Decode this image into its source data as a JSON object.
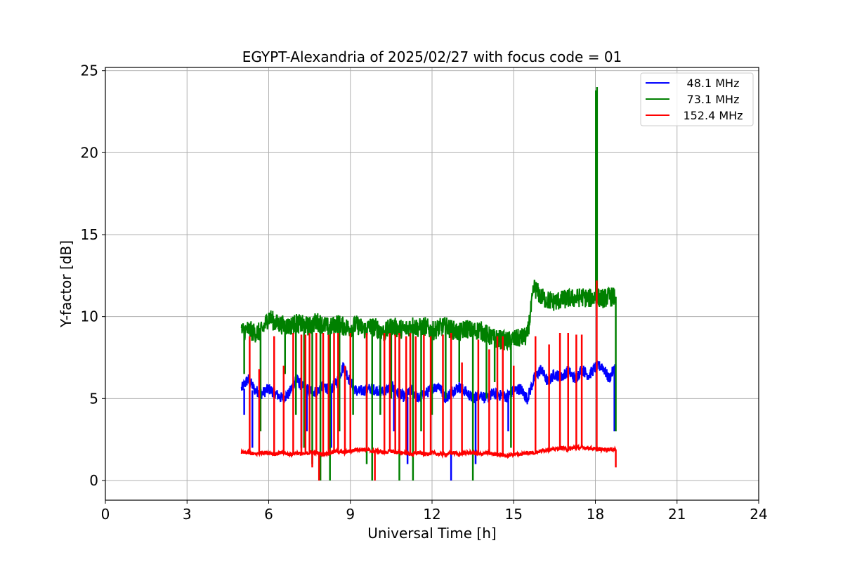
{
  "chart_data": {
    "type": "line",
    "title": "EGYPT-Alexandria of 2025/02/27 with focus code = 01",
    "xlabel": "Universal Time [h]",
    "ylabel": "Y-factor [dB]",
    "xlim": [
      0,
      24
    ],
    "ylim": [
      -1.2,
      25.2
    ],
    "xticks": [
      "0",
      "3",
      "6",
      "9",
      "12",
      "15",
      "18",
      "21",
      "24"
    ],
    "yticks": [
      "0",
      "5",
      "10",
      "15",
      "20",
      "25"
    ],
    "grid": true,
    "legend_position": "top-right",
    "x_step_h": 0.25,
    "x_start_h": 5.0,
    "series": [
      {
        "name": "48.1 MHz",
        "color": "#0000ff",
        "noise": 0.35,
        "values": [
          5.6,
          6.2,
          5.5,
          5.3,
          5.6,
          5.3,
          5.0,
          5.3,
          6.2,
          5.7,
          5.5,
          5.4,
          5.8,
          5.5,
          6.0,
          7.0,
          6.0,
          5.4,
          5.5,
          5.6,
          5.5,
          5.4,
          5.8,
          5.3,
          5.1,
          5.5,
          5.0,
          5.3,
          5.6,
          5.8,
          5.0,
          5.5,
          5.7,
          5.4,
          5.0,
          5.3,
          5.0,
          5.3,
          5.2,
          5.1,
          5.5,
          5.6,
          5.0,
          6.2,
          6.8,
          6.0,
          6.5,
          6.3,
          6.7,
          6.2,
          6.8,
          6.4,
          6.9,
          7.0,
          6.2,
          7.0
        ],
        "spikes": [
          [
            5.1,
            4
          ],
          [
            5.4,
            2
          ],
          [
            7.2,
            2
          ],
          [
            7.4,
            3
          ],
          [
            8.3,
            2
          ],
          [
            10.6,
            3
          ],
          [
            11.1,
            1
          ],
          [
            12.7,
            0
          ],
          [
            13.6,
            1
          ],
          [
            14.8,
            3
          ],
          [
            18.7,
            3
          ]
        ]
      },
      {
        "name": "73.1 MHz",
        "color": "#008000",
        "noise": 0.6,
        "values": [
          9.1,
          9.2,
          9.0,
          9.1,
          10.0,
          9.6,
          9.5,
          9.4,
          9.6,
          9.5,
          9.4,
          9.7,
          9.5,
          9.3,
          9.6,
          9.4,
          9.3,
          9.5,
          9.2,
          9.4,
          9.3,
          9.0,
          9.4,
          9.3,
          9.2,
          9.5,
          9.3,
          9.4,
          9.1,
          9.3,
          9.4,
          9.2,
          9.0,
          9.3,
          9.1,
          9.2,
          8.9,
          8.7,
          8.6,
          8.5,
          8.6,
          8.7,
          8.8,
          11.8,
          11.2,
          11.0,
          10.9,
          11.0,
          11.1,
          11.1,
          11.2,
          11.1,
          11.2,
          11.1,
          11.2,
          11.2
        ],
        "spikes": [
          [
            5.1,
            6.5
          ],
          [
            5.7,
            3
          ],
          [
            6.6,
            6.5
          ],
          [
            7.0,
            4
          ],
          [
            7.3,
            2
          ],
          [
            7.6,
            1
          ],
          [
            7.9,
            0
          ],
          [
            8.25,
            0
          ],
          [
            8.6,
            3
          ],
          [
            9.1,
            4
          ],
          [
            9.6,
            1
          ],
          [
            9.8,
            0
          ],
          [
            10.1,
            4
          ],
          [
            10.5,
            5
          ],
          [
            10.8,
            0
          ],
          [
            11.3,
            0
          ],
          [
            11.6,
            3
          ],
          [
            12.0,
            4
          ],
          [
            12.5,
            5
          ],
          [
            13.0,
            6
          ],
          [
            13.5,
            0
          ],
          [
            14.0,
            5
          ],
          [
            14.3,
            6
          ],
          [
            14.9,
            2
          ],
          [
            18.02,
            23.8
          ],
          [
            18.06,
            24.0
          ],
          [
            18.75,
            3
          ]
        ]
      },
      {
        "name": "152.4 MHz",
        "color": "#ff0000",
        "noise": 0.12,
        "values": [
          1.7,
          1.7,
          1.6,
          1.7,
          1.7,
          1.6,
          1.7,
          1.6,
          1.7,
          1.6,
          1.7,
          1.7,
          1.6,
          1.7,
          1.8,
          1.7,
          1.8,
          1.9,
          1.9,
          1.8,
          1.8,
          1.7,
          1.8,
          1.7,
          1.7,
          1.6,
          1.7,
          1.6,
          1.7,
          1.6,
          1.6,
          1.7,
          1.6,
          1.7,
          1.7,
          1.6,
          1.7,
          1.6,
          1.6,
          1.5,
          1.6,
          1.6,
          1.7,
          1.7,
          1.8,
          1.9,
          1.9,
          2.0,
          1.9,
          2.0,
          2.0,
          2.0,
          1.9,
          1.9,
          1.9,
          1.9
        ],
        "spikes": [
          [
            5.3,
            8.8
          ],
          [
            5.65,
            6.8
          ],
          [
            6.2,
            8.8
          ],
          [
            6.55,
            7
          ],
          [
            6.9,
            9
          ],
          [
            7.2,
            8.9
          ],
          [
            7.35,
            8.9
          ],
          [
            7.5,
            9
          ],
          [
            7.6,
            0.8
          ],
          [
            7.75,
            9
          ],
          [
            7.85,
            0
          ],
          [
            8.0,
            9
          ],
          [
            8.2,
            8.9
          ],
          [
            8.4,
            9
          ],
          [
            8.55,
            9
          ],
          [
            8.8,
            7
          ],
          [
            9.0,
            9
          ],
          [
            9.6,
            9
          ],
          [
            9.9,
            0
          ],
          [
            10.25,
            9
          ],
          [
            10.45,
            9
          ],
          [
            10.65,
            8.9
          ],
          [
            10.8,
            9
          ],
          [
            11.05,
            8.8
          ],
          [
            11.2,
            9
          ],
          [
            11.4,
            8.8
          ],
          [
            11.7,
            8.9
          ],
          [
            11.95,
            8.8
          ],
          [
            12.4,
            8.9
          ],
          [
            12.7,
            9
          ],
          [
            13.1,
            7.2
          ],
          [
            13.7,
            8.6
          ],
          [
            14.1,
            8
          ],
          [
            14.4,
            8.8
          ],
          [
            14.6,
            8.8
          ],
          [
            15.0,
            7
          ],
          [
            15.8,
            8.8
          ],
          [
            16.3,
            8.3
          ],
          [
            16.7,
            9
          ],
          [
            17.0,
            9
          ],
          [
            17.3,
            8.9
          ],
          [
            17.5,
            8.9
          ],
          [
            18.05,
            12.2
          ],
          [
            18.75,
            0.8
          ]
        ]
      }
    ]
  }
}
